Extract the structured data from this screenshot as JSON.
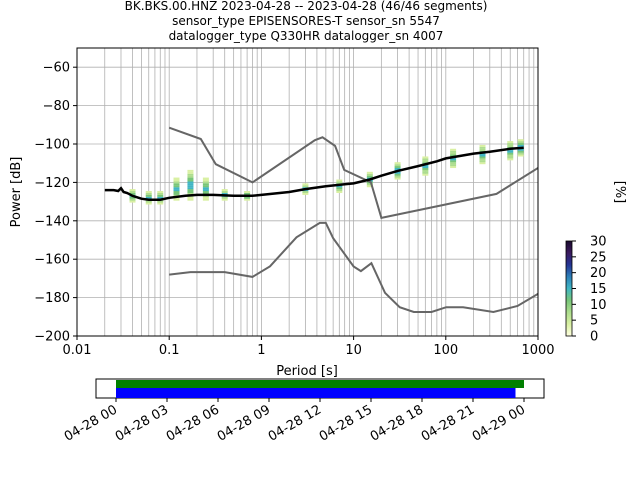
{
  "title_lines": [
    "BK.BKS.00.HNZ   2023-04-28 -- 2023-04-28  (46/46 segments)",
    "sensor_type EPISENSORES-T sensor_sn 5547",
    "datalogger_type Q330HR datalogger_sn 4007"
  ],
  "chart_data": [
    {
      "type": "heatmap",
      "subtype": "ppsd",
      "xlabel": "Period [s]",
      "ylabel": "Power [dB]",
      "xscale": "log",
      "xlim": [
        0.01,
        1000
      ],
      "ylim": [
        -200,
        -50
      ],
      "x_ticks": [
        {
          "v": 0.01,
          "label": "0.01"
        },
        {
          "v": 0.1,
          "label": "0.1"
        },
        {
          "v": 1,
          "label": "1"
        },
        {
          "v": 10,
          "label": "10"
        },
        {
          "v": 100,
          "label": "100"
        },
        {
          "v": 1000,
          "label": "1000"
        }
      ],
      "y_ticks": [
        {
          "v": -60,
          "label": "−60"
        },
        {
          "v": -80,
          "label": "−80"
        },
        {
          "v": -100,
          "label": "−100"
        },
        {
          "v": -120,
          "label": "−120"
        },
        {
          "v": -140,
          "label": "−140"
        },
        {
          "v": -160,
          "label": "−160"
        },
        {
          "v": -180,
          "label": "−180"
        },
        {
          "v": -200,
          "label": "−200"
        }
      ],
      "grid": true,
      "grid_periods": [
        0.02,
        0.03,
        0.04,
        0.05,
        0.06,
        0.07,
        0.08,
        0.09,
        0.2,
        0.3,
        0.4,
        0.5,
        0.6,
        0.7,
        0.8,
        0.9,
        2,
        3,
        4,
        5,
        6,
        7,
        8,
        9,
        20,
        30,
        40,
        50,
        60,
        70,
        80,
        90,
        200,
        300,
        400,
        500,
        600,
        700,
        800,
        900
      ],
      "noise_models": {
        "color": "#666666",
        "high": {
          "periods": [
            0.1,
            0.22,
            0.32,
            0.8,
            3.8,
            4.6,
            6.3,
            7.9,
            15.4,
            20,
            354.8,
            1000
          ],
          "db": [
            -91.5,
            -97.4,
            -110.5,
            -120,
            -98,
            -96.5,
            -101,
            -113.5,
            -120,
            -138.5,
            -126,
            -112.5
          ]
        },
        "low": {
          "periods": [
            0.1,
            0.17,
            0.4,
            0.8,
            1.24,
            2.4,
            4.3,
            5,
            6,
            10,
            12,
            15.6,
            21.9,
            31.6,
            45,
            70,
            101,
            154,
            328,
            600,
            1000
          ],
          "db": [
            -168,
            -166.7,
            -166.7,
            -169.2,
            -163.7,
            -148.6,
            -141.1,
            -141.1,
            -149,
            -163.8,
            -166.2,
            -162.1,
            -177.5,
            -185,
            -187.5,
            -187.5,
            -185,
            -185,
            -187.5,
            -184.4,
            -178
          ]
        }
      },
      "ppsd_mode": {
        "color": "#000000",
        "periods": [
          0.02,
          0.025,
          0.028,
          0.03,
          0.032,
          0.035,
          0.04,
          0.05,
          0.06,
          0.08,
          0.1,
          0.15,
          0.2,
          0.3,
          0.5,
          0.8,
          1,
          2,
          3,
          5,
          8,
          10,
          15,
          20,
          30,
          50,
          80,
          100,
          200,
          300,
          500,
          700
        ],
        "db": [
          -124,
          -124,
          -124.5,
          -123,
          -125,
          -125.5,
          -127,
          -128.5,
          -129,
          -129,
          -128,
          -127,
          -126.5,
          -126.5,
          -127,
          -127,
          -126.5,
          -125,
          -123.5,
          -122,
          -121,
          -120.5,
          -118.5,
          -116.5,
          -114,
          -111.5,
          -109,
          -107.5,
          -105,
          -104,
          -102.5,
          -102
        ]
      },
      "ppsd_spread": [
        {
          "period": 0.04,
          "from": -130,
          "to": -124
        },
        {
          "period": 0.06,
          "from": -131,
          "to": -125
        },
        {
          "period": 0.08,
          "from": -131,
          "to": -125
        },
        {
          "period": 0.12,
          "from": -129,
          "to": -118
        },
        {
          "period": 0.17,
          "from": -129,
          "to": -114
        },
        {
          "period": 0.25,
          "from": -129,
          "to": -118
        },
        {
          "period": 0.4,
          "from": -129,
          "to": -124
        },
        {
          "period": 0.7,
          "from": -129,
          "to": -125
        },
        {
          "period": 3,
          "from": -126,
          "to": -121
        },
        {
          "period": 7,
          "from": -125,
          "to": -119
        },
        {
          "period": 15,
          "from": -122,
          "to": -115
        },
        {
          "period": 30,
          "from": -118,
          "to": -110
        },
        {
          "period": 60,
          "from": -116,
          "to": -107
        },
        {
          "period": 120,
          "from": -112,
          "to": -103
        },
        {
          "period": 250,
          "from": -110,
          "to": -101
        },
        {
          "period": 500,
          "from": -108,
          "to": -99
        },
        {
          "period": 650,
          "from": -106,
          "to": -98
        }
      ]
    },
    {
      "type": "bar",
      "subtype": "data-coverage",
      "categories": [
        "04-28 00",
        "04-28 03",
        "04-28 06",
        "04-28 09",
        "04-28 12",
        "04-28 15",
        "04-28 18",
        "04-28 21",
        "04-29 00"
      ],
      "series": [
        {
          "color": "#008000",
          "from_hours": 0,
          "to_hours": 24
        },
        {
          "color": "#0000ff",
          "from_hours": 0,
          "to_hours": 23.5
        }
      ]
    }
  ],
  "colorbar": {
    "label": "[%]",
    "range": [
      0,
      30
    ],
    "ticks": [
      "0",
      "5",
      "10",
      "15",
      "20",
      "25",
      "30"
    ],
    "colors": [
      "#ffffe0",
      "#d9f0a3",
      "#addd8e",
      "#78c679",
      "#41b6c4",
      "#2c7fb8",
      "#253494",
      "#3b1a5e",
      "#1a0a2e"
    ]
  }
}
